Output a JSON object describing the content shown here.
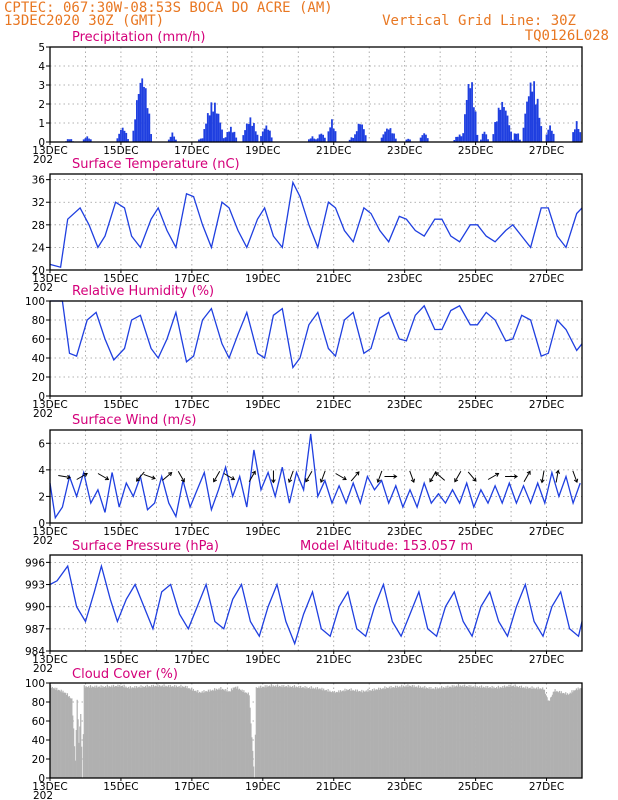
{
  "header": {
    "line1": "CPTEC:   067:30W-08:53S   BOCA DO ACRE (AM)",
    "line2": "13DEC2020 30Z (GMT)",
    "grid_note": "Vertical Grid Line: 30Z",
    "code": "TQ0126L028"
  },
  "colors": {
    "header": "#e87722",
    "title": "#d4007a",
    "series": "#1f3fe0",
    "cloud": "#b0b0b0",
    "grid": "#999999"
  },
  "x_labels": [
    "13DEC",
    "15DEC",
    "17DEC",
    "19DEC",
    "21DEC",
    "23DEC",
    "25DEC",
    "27DEC"
  ],
  "year_fragment": "202",
  "chart_data": [
    {
      "id": "precip",
      "type": "bar",
      "title": "Precipitation (mm/h)",
      "ylim": [
        0,
        5
      ],
      "yticks": [
        0,
        1,
        2,
        3,
        4,
        5
      ],
      "x_range_days": [
        0,
        15
      ],
      "events": [
        [
          0.55,
          0.2,
          0.12
        ],
        [
          1.05,
          0.3,
          0.15
        ],
        [
          2.05,
          0.8,
          0.18
        ],
        [
          2.6,
          3.6,
          0.28
        ],
        [
          3.45,
          0.5,
          0.12
        ],
        [
          4.25,
          0.2,
          0.1
        ],
        [
          4.6,
          2.2,
          0.32
        ],
        [
          5.1,
          0.8,
          0.2
        ],
        [
          5.65,
          1.3,
          0.25
        ],
        [
          6.1,
          0.9,
          0.2
        ],
        [
          7.4,
          0.3,
          0.15
        ],
        [
          7.65,
          0.5,
          0.15
        ],
        [
          7.95,
          1.2,
          0.15
        ],
        [
          8.55,
          0.3,
          0.15
        ],
        [
          8.75,
          1.1,
          0.2
        ],
        [
          9.55,
          0.8,
          0.25
        ],
        [
          10.1,
          0.2,
          0.1
        ],
        [
          10.55,
          0.5,
          0.15
        ],
        [
          11.55,
          0.4,
          0.2
        ],
        [
          11.85,
          3.5,
          0.22
        ],
        [
          12.25,
          0.6,
          0.12
        ],
        [
          12.75,
          2.2,
          0.3
        ],
        [
          13.15,
          0.6,
          0.12
        ],
        [
          13.6,
          3.4,
          0.3
        ],
        [
          14.1,
          0.9,
          0.15
        ],
        [
          14.85,
          1.1,
          0.15
        ]
      ]
    },
    {
      "id": "temperature",
      "type": "line",
      "title": "Surface Temperature (nC)",
      "ylim": [
        20,
        37
      ],
      "yticks": [
        20,
        24,
        28,
        32,
        36
      ],
      "x": [
        0,
        0.3,
        0.5,
        0.85,
        1.1,
        1.35,
        1.55,
        1.85,
        2.1,
        2.3,
        2.55,
        2.85,
        3.05,
        3.3,
        3.55,
        3.85,
        4.05,
        4.3,
        4.55,
        4.85,
        5.05,
        5.3,
        5.55,
        5.85,
        6.05,
        6.3,
        6.55,
        6.85,
        7.05,
        7.3,
        7.55,
        7.85,
        8.05,
        8.3,
        8.55,
        8.85,
        9.05,
        9.3,
        9.55,
        9.85,
        10.05,
        10.3,
        10.55,
        10.85,
        11.05,
        11.3,
        11.55,
        11.85,
        12.05,
        12.3,
        12.55,
        12.85,
        13.05,
        13.3,
        13.55,
        13.85,
        14.05,
        14.3,
        14.55,
        14.85,
        15.0
      ],
      "y": [
        21,
        20.5,
        29,
        31,
        28,
        24,
        26,
        32,
        31,
        26,
        24,
        29,
        31,
        27,
        24,
        33.5,
        33,
        28,
        24,
        32,
        31,
        27,
        24,
        29,
        31,
        26,
        24,
        35.5,
        33,
        28,
        24,
        32,
        31,
        27,
        25,
        31,
        30,
        27,
        25,
        29.5,
        29,
        27,
        26,
        29,
        29,
        26,
        25,
        28,
        28,
        26,
        25,
        27,
        28,
        26,
        24,
        31,
        31,
        26,
        24,
        30,
        31
      ]
    },
    {
      "id": "humidity",
      "type": "line",
      "title": "Relative Humidity (%)",
      "ylim": [
        0,
        100
      ],
      "yticks": [
        0,
        20,
        40,
        60,
        80,
        100
      ],
      "x": [
        0,
        0.35,
        0.55,
        0.75,
        1.05,
        1.3,
        1.55,
        1.8,
        2.1,
        2.3,
        2.55,
        2.85,
        3.05,
        3.3,
        3.55,
        3.85,
        4.05,
        4.3,
        4.55,
        4.85,
        5.05,
        5.3,
        5.55,
        5.85,
        6.05,
        6.3,
        6.55,
        6.85,
        7.05,
        7.3,
        7.55,
        7.85,
        8.05,
        8.3,
        8.55,
        8.85,
        9.05,
        9.3,
        9.55,
        9.85,
        10.05,
        10.3,
        10.55,
        10.85,
        11.05,
        11.3,
        11.55,
        11.85,
        12.05,
        12.3,
        12.55,
        12.85,
        13.05,
        13.3,
        13.55,
        13.85,
        14.05,
        14.3,
        14.55,
        14.85,
        15.0
      ],
      "y": [
        100,
        100,
        45,
        42,
        80,
        88,
        60,
        38,
        50,
        80,
        85,
        50,
        40,
        60,
        88,
        36,
        42,
        80,
        92,
        55,
        40,
        65,
        88,
        45,
        40,
        85,
        92,
        30,
        40,
        75,
        88,
        50,
        42,
        80,
        88,
        45,
        50,
        82,
        88,
        60,
        58,
        85,
        95,
        70,
        70,
        90,
        95,
        75,
        75,
        88,
        80,
        58,
        60,
        85,
        80,
        42,
        45,
        80,
        70,
        48,
        55
      ]
    },
    {
      "id": "wind",
      "type": "line",
      "title": "Surface Wind (m/s)",
      "ylim": [
        0,
        7
      ],
      "yticks": [
        0,
        2,
        4,
        6
      ],
      "x": [
        0,
        0.15,
        0.35,
        0.55,
        0.75,
        0.95,
        1.15,
        1.35,
        1.55,
        1.75,
        1.95,
        2.15,
        2.35,
        2.55,
        2.75,
        2.95,
        3.15,
        3.35,
        3.55,
        3.75,
        3.95,
        4.15,
        4.35,
        4.55,
        4.75,
        4.95,
        5.15,
        5.35,
        5.55,
        5.75,
        5.95,
        6.15,
        6.35,
        6.55,
        6.75,
        6.95,
        7.15,
        7.35,
        7.55,
        7.75,
        7.95,
        8.15,
        8.35,
        8.55,
        8.75,
        8.95,
        9.15,
        9.35,
        9.55,
        9.75,
        9.95,
        10.15,
        10.35,
        10.55,
        10.75,
        10.95,
        11.15,
        11.35,
        11.55,
        11.75,
        11.95,
        12.15,
        12.35,
        12.55,
        12.75,
        12.95,
        13.15,
        13.35,
        13.55,
        13.75,
        13.95,
        14.15,
        14.35,
        14.55,
        14.75,
        14.95
      ],
      "y": [
        3,
        0.4,
        1.2,
        3.5,
        2,
        3.8,
        1.5,
        2.5,
        0.8,
        3.8,
        1.2,
        3,
        2,
        3.5,
        1,
        1.5,
        3.5,
        1.5,
        0.5,
        3.2,
        1.2,
        2.5,
        3.8,
        1,
        2.5,
        4.2,
        2,
        3.5,
        1.2,
        5.5,
        2.5,
        3.8,
        2,
        4.2,
        1.5,
        3.8,
        2.5,
        6.7,
        2,
        3.2,
        1.5,
        2.8,
        1.5,
        3,
        1.5,
        3.5,
        2.5,
        3.2,
        1.5,
        2.8,
        1.2,
        2.5,
        1.2,
        3,
        1.5,
        2.2,
        1.5,
        2.5,
        1.5,
        3,
        1.2,
        2.5,
        1.5,
        2.8,
        1.5,
        3,
        1.5,
        2.8,
        1.5,
        3,
        1.5,
        3.8,
        2,
        3.5,
        1.5,
        3
      ],
      "arrows": [
        [
          0.4,
          100
        ],
        [
          0.9,
          60
        ],
        [
          1.5,
          120
        ],
        [
          2.55,
          220
        ],
        [
          2.8,
          110
        ],
        [
          3.3,
          50
        ],
        [
          3.7,
          150
        ],
        [
          4.7,
          210
        ],
        [
          5.05,
          120
        ],
        [
          5.7,
          30
        ],
        [
          6.3,
          180
        ],
        [
          6.8,
          200
        ],
        [
          7.3,
          210
        ],
        [
          7.7,
          200
        ],
        [
          8.2,
          120
        ],
        [
          8.6,
          40
        ],
        [
          9.3,
          200
        ],
        [
          9.6,
          90
        ],
        [
          10.2,
          160
        ],
        [
          10.8,
          210
        ],
        [
          11.0,
          310
        ],
        [
          11.5,
          210
        ],
        [
          11.9,
          140
        ],
        [
          12.5,
          60
        ],
        [
          13.0,
          90
        ],
        [
          13.45,
          30
        ],
        [
          13.9,
          190
        ],
        [
          14.3,
          10
        ],
        [
          14.8,
          160
        ]
      ]
    },
    {
      "id": "pressure",
      "type": "line",
      "title": "Surface Pressure (hPa)",
      "annotation": "Model Altitude: 153.057 m",
      "ylim": [
        984,
        997
      ],
      "yticks": [
        984,
        987,
        990,
        993,
        996
      ],
      "x": [
        0,
        0.2,
        0.5,
        0.75,
        1.0,
        1.25,
        1.45,
        1.7,
        1.9,
        2.15,
        2.4,
        2.65,
        2.9,
        3.15,
        3.4,
        3.65,
        3.9,
        4.15,
        4.4,
        4.65,
        4.9,
        5.15,
        5.4,
        5.65,
        5.9,
        6.15,
        6.4,
        6.65,
        6.9,
        7.15,
        7.4,
        7.65,
        7.9,
        8.15,
        8.4,
        8.65,
        8.9,
        9.15,
        9.4,
        9.65,
        9.9,
        10.15,
        10.4,
        10.65,
        10.9,
        11.15,
        11.4,
        11.65,
        11.9,
        12.15,
        12.4,
        12.65,
        12.9,
        13.15,
        13.4,
        13.65,
        13.9,
        14.15,
        14.4,
        14.65,
        14.9,
        15.0
      ],
      "y": [
        993,
        993.5,
        995.5,
        990,
        988,
        992,
        995.5,
        991,
        988,
        991,
        993,
        990,
        987,
        992,
        993,
        989,
        987,
        990,
        993,
        988,
        987,
        991,
        993,
        988,
        986,
        990,
        993,
        988,
        985,
        989,
        992,
        987,
        986,
        990,
        992,
        987,
        986,
        990,
        993,
        988,
        986,
        989,
        992,
        987,
        986,
        990,
        992,
        988,
        986,
        990,
        992,
        988,
        986,
        990,
        993,
        988,
        986,
        990,
        992,
        987,
        986,
        988
      ]
    },
    {
      "id": "cloud",
      "type": "area",
      "title": "Cloud Cover (%)",
      "ylim": [
        0,
        100
      ],
      "yticks": [
        0,
        20,
        40,
        60,
        80,
        100
      ],
      "profile": [
        [
          0,
          98
        ],
        [
          0.4,
          92
        ],
        [
          0.6,
          85
        ],
        [
          0.7,
          20
        ],
        [
          0.75,
          85
        ],
        [
          0.8,
          40
        ],
        [
          0.85,
          70
        ],
        [
          0.9,
          0
        ],
        [
          0.95,
          98
        ],
        [
          1.5,
          98
        ],
        [
          2.0,
          99
        ],
        [
          2.2,
          97
        ],
        [
          2.6,
          98
        ],
        [
          3.0,
          99
        ],
        [
          3.8,
          98
        ],
        [
          4.2,
          92
        ],
        [
          4.8,
          96
        ],
        [
          5.05,
          93
        ],
        [
          5.2,
          98
        ],
        [
          5.6,
          90
        ],
        [
          5.75,
          0
        ],
        [
          5.8,
          97
        ],
        [
          6.2,
          99
        ],
        [
          6.9,
          98
        ],
        [
          7.6,
          96
        ],
        [
          8.0,
          92
        ],
        [
          8.4,
          95
        ],
        [
          8.8,
          93
        ],
        [
          9.5,
          97
        ],
        [
          10.1,
          99
        ],
        [
          10.8,
          96
        ],
        [
          11.5,
          99
        ],
        [
          12.0,
          98
        ],
        [
          12.6,
          97
        ],
        [
          13.0,
          99
        ],
        [
          13.4,
          97
        ],
        [
          13.9,
          96
        ],
        [
          14.05,
          82
        ],
        [
          14.2,
          94
        ],
        [
          14.6,
          90
        ],
        [
          14.8,
          95
        ],
        [
          15.0,
          97
        ]
      ]
    }
  ]
}
